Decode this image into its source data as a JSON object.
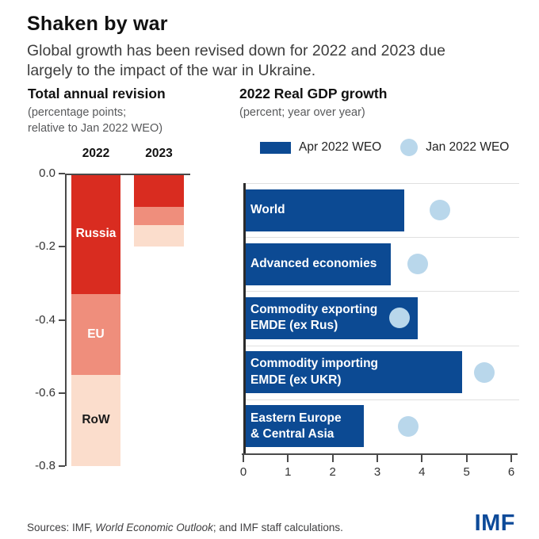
{
  "page": {
    "title": "Shaken by war",
    "subtitle_line1": "Global growth has been revised down for 2022 and 2023 due",
    "subtitle_line2": "largely to the impact of the war in Ukraine."
  },
  "footer": {
    "sources_prefix": "Sources: IMF, ",
    "sources_italic": "World Economic Outlook",
    "sources_suffix": "; and IMF staff calculations.",
    "logo_text": "IMF"
  },
  "colors": {
    "russia_red": "#d92c20",
    "eu_salmon": "#ef8e7c",
    "row_pink": "#fbddcc",
    "apr_blue": "#0c4a93",
    "jan_light_blue": "#b9d7eb",
    "axis_dark": "#4a4a4a",
    "axis_black": "#2b2b2b",
    "separator_gray": "#e0e0e0",
    "text_black": "#1a1a1a",
    "imf_blue": "#0d4a99"
  },
  "chart_data": [
    {
      "type": "bar",
      "variant": "stacked-column",
      "title": "Total annual revision",
      "subtitle_line1": "(percentage points;",
      "subtitle_line2": "relative to Jan 2022 WEO)",
      "categories": [
        "2022",
        "2023"
      ],
      "series": [
        {
          "name": "Russia",
          "values": [
            -0.33,
            -0.09
          ]
        },
        {
          "name": "EU",
          "values": [
            -0.22,
            -0.05
          ]
        },
        {
          "name": "RoW",
          "values": [
            -0.25,
            -0.06
          ]
        }
      ],
      "totals": [
        -0.8,
        -0.2
      ],
      "ylim": [
        -0.8,
        0.0
      ],
      "ytick_labels": [
        "0.0",
        "-0.2",
        "-0.4",
        "-0.6",
        "-0.8"
      ],
      "segment_labels_on": "2022",
      "grid": false
    },
    {
      "type": "bar",
      "variant": "horizontal-bars-with-dots",
      "title": "2022 Real GDP growth",
      "subtitle": "(percent; year over year)",
      "legend": [
        {
          "label": "Apr 2022 WEO",
          "marker": "bar"
        },
        {
          "label": "Jan 2022 WEO",
          "marker": "dot"
        }
      ],
      "categories": [
        [
          "World"
        ],
        [
          "Advanced economies"
        ],
        [
          "Commodity exporting",
          "EMDE (ex Rus)"
        ],
        [
          "Commodity importing",
          "EMDE (ex UKR)"
        ],
        [
          "Eastern Europe",
          "& Central Asia"
        ]
      ],
      "series": [
        {
          "name": "Apr 2022 WEO",
          "marker": "bar",
          "values": [
            3.6,
            3.3,
            3.9,
            4.9,
            2.7
          ]
        },
        {
          "name": "Jan 2022 WEO",
          "marker": "dot",
          "values": [
            4.4,
            3.9,
            3.5,
            5.4,
            3.7
          ]
        }
      ],
      "xlim": [
        0,
        6
      ],
      "xticks": [
        "0",
        "1",
        "2",
        "3",
        "4",
        "5",
        "6"
      ],
      "grid": false,
      "legend_position": "top"
    }
  ]
}
